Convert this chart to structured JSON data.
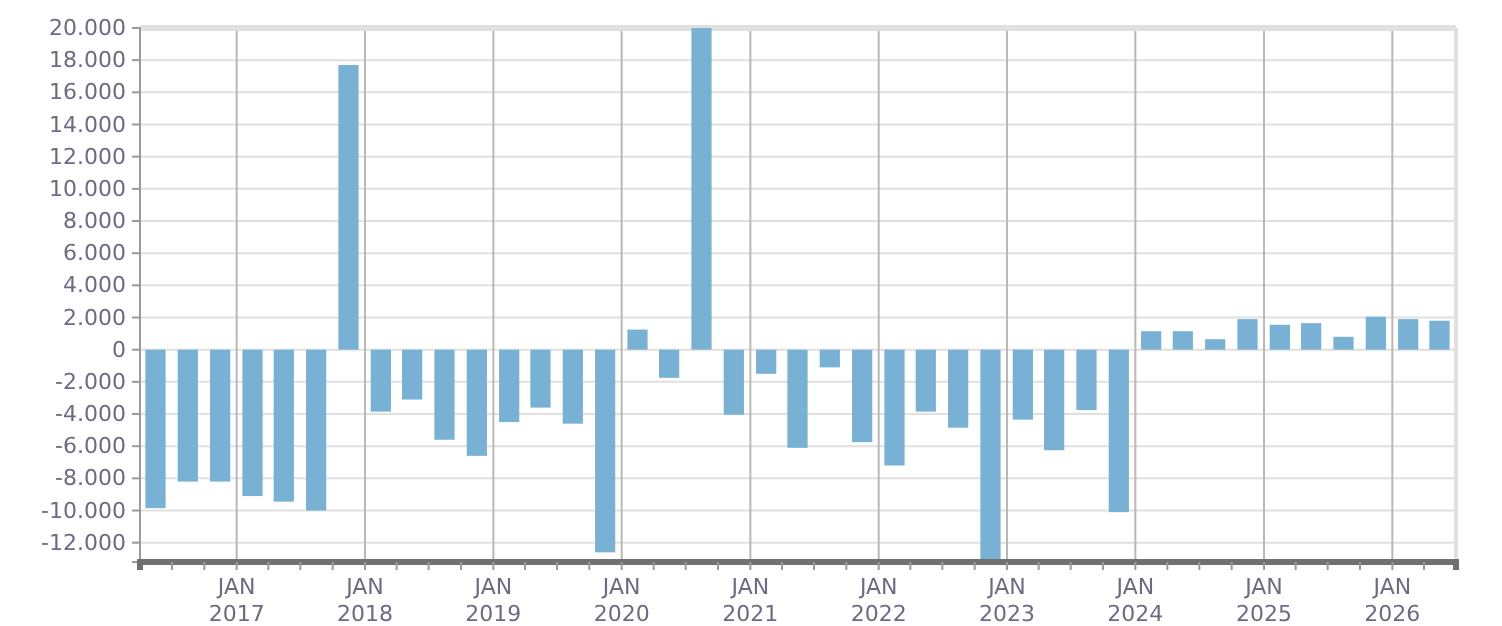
{
  "chart_data": {
    "type": "bar",
    "color": "#78b1d3",
    "grid": true,
    "x": [
      "2016-05-15",
      "2016-08-15",
      "2016-11-15",
      "2017-02-15",
      "2017-05-15",
      "2017-08-15",
      "2017-11-15",
      "2018-02-15",
      "2018-05-15",
      "2018-08-15",
      "2018-11-15",
      "2019-02-15",
      "2019-05-15",
      "2019-08-15",
      "2019-11-15",
      "2020-02-15",
      "2020-05-15",
      "2020-08-15",
      "2020-11-15",
      "2021-02-15",
      "2021-05-15",
      "2021-08-15",
      "2021-11-15",
      "2022-02-15",
      "2022-05-15",
      "2022-08-15",
      "2022-11-15",
      "2023-02-15",
      "2023-05-15",
      "2023-08-15",
      "2023-11-15",
      "2024-02-15",
      "2024-05-15",
      "2024-08-15",
      "2024-11-15",
      "2025-02-15",
      "2025-05-15",
      "2025-08-15",
      "2025-11-15",
      "2026-02-15",
      "2026-05-15"
    ],
    "values": [
      -9850,
      -8200,
      -8200,
      -9100,
      -9450,
      -10000,
      17700,
      -3850,
      -3100,
      -5600,
      -6600,
      -4500,
      -3600,
      -4600,
      -12600,
      1250,
      -1750,
      20000,
      -4050,
      -1500,
      -6100,
      -1100,
      -5750,
      -7200,
      -3850,
      -4850,
      -13200,
      -4350,
      -6250,
      -3750,
      -10100,
      1150,
      1150,
      650,
      1900,
      1550,
      1650,
      800,
      2050,
      1900,
      1800
    ],
    "xlim": [
      "2016-04-01",
      "2026-07-01"
    ],
    "xticks": [
      {
        "value": "2016-07-01",
        "label": null
      },
      {
        "value": "2016-10-01",
        "label": null
      },
      {
        "value": "2017-01-01",
        "label": "JAN 2017"
      },
      {
        "value": "2017-04-01",
        "label": null
      },
      {
        "value": "2017-07-01",
        "label": null
      },
      {
        "value": "2017-10-01",
        "label": null
      },
      {
        "value": "2018-01-01",
        "label": "JAN 2018"
      },
      {
        "value": "2018-04-01",
        "label": null
      },
      {
        "value": "2018-07-01",
        "label": null
      },
      {
        "value": "2018-10-01",
        "label": null
      },
      {
        "value": "2019-01-01",
        "label": "JAN 2019"
      },
      {
        "value": "2019-04-01",
        "label": null
      },
      {
        "value": "2019-07-01",
        "label": null
      },
      {
        "value": "2019-10-01",
        "label": null
      },
      {
        "value": "2020-01-01",
        "label": "JAN 2020"
      },
      {
        "value": "2020-04-01",
        "label": null
      },
      {
        "value": "2020-07-01",
        "label": null
      },
      {
        "value": "2020-10-01",
        "label": null
      },
      {
        "value": "2021-01-01",
        "label": "JAN 2021"
      },
      {
        "value": "2021-04-01",
        "label": null
      },
      {
        "value": "2021-07-01",
        "label": null
      },
      {
        "value": "2021-10-01",
        "label": null
      },
      {
        "value": "2022-01-01",
        "label": "JAN 2022"
      },
      {
        "value": "2022-04-01",
        "label": null
      },
      {
        "value": "2022-07-01",
        "label": null
      },
      {
        "value": "2022-10-01",
        "label": null
      },
      {
        "value": "2023-01-01",
        "label": "JAN 2023"
      },
      {
        "value": "2023-04-01",
        "label": null
      },
      {
        "value": "2023-07-01",
        "label": null
      },
      {
        "value": "2023-10-01",
        "label": null
      },
      {
        "value": "2024-01-01",
        "label": "JAN 2024"
      },
      {
        "value": "2024-04-01",
        "label": null
      },
      {
        "value": "2024-07-01",
        "label": null
      },
      {
        "value": "2024-10-01",
        "label": null
      },
      {
        "value": "2025-01-01",
        "label": "JAN 2025"
      },
      {
        "value": "2025-04-01",
        "label": null
      },
      {
        "value": "2025-07-01",
        "label": null
      },
      {
        "value": "2025-10-01",
        "label": null
      },
      {
        "value": "2026-01-01",
        "label": "JAN 2026"
      },
      {
        "value": "2026-04-01",
        "label": null
      }
    ],
    "ylim": [
      -13200,
      20000
    ],
    "yticks": [
      {
        "value": -12000,
        "label": "-12.000"
      },
      {
        "value": -10000,
        "label": "-10.000"
      },
      {
        "value": -8000,
        "label": "-8.000"
      },
      {
        "value": -6000,
        "label": "-6.000"
      },
      {
        "value": -4000,
        "label": "-4.000"
      },
      {
        "value": -2000,
        "label": "-2.000"
      },
      {
        "value": 0,
        "label": "0"
      },
      {
        "value": 2000,
        "label": "2.000"
      },
      {
        "value": 4000,
        "label": "4.000"
      },
      {
        "value": 6000,
        "label": "6.000"
      },
      {
        "value": 8000,
        "label": "8.000"
      },
      {
        "value": 10000,
        "label": "10.000"
      },
      {
        "value": 12000,
        "label": "12.000"
      },
      {
        "value": 14000,
        "label": "14.000"
      },
      {
        "value": 16000,
        "label": "16.000"
      },
      {
        "value": 18000,
        "label": "18.000"
      },
      {
        "value": 20000,
        "label": "20.000"
      }
    ]
  }
}
